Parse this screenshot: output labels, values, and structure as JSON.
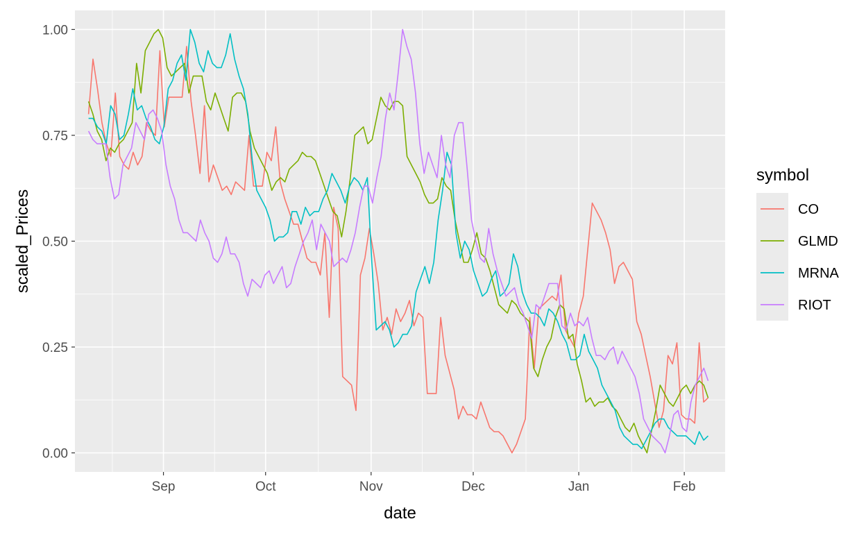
{
  "chart_data": {
    "type": "line",
    "xlabel": "date",
    "ylabel": "scaled_Prices",
    "legend_title": "symbol",
    "legend_position": "right",
    "grid": true,
    "x_start": "2021-08-10",
    "x_end": "2022-02-08",
    "xlim": [
      "2021-08-06",
      "2022-02-13"
    ],
    "ylim": [
      -0.045,
      1.045
    ],
    "x_ticks": [
      {
        "label": "Sep",
        "date": "2021-09-01"
      },
      {
        "label": "Oct",
        "date": "2021-10-01"
      },
      {
        "label": "Nov",
        "date": "2021-11-01"
      },
      {
        "label": "Dec",
        "date": "2021-12-01"
      },
      {
        "label": "Jan",
        "date": "2022-01-01"
      },
      {
        "label": "Feb",
        "date": "2022-02-01"
      }
    ],
    "y_ticks": [
      0,
      0.25,
      0.5,
      0.75,
      1.0
    ],
    "y_tick_labels": [
      "0.00",
      "0.25",
      "0.50",
      "0.75",
      "1.00"
    ],
    "series": [
      {
        "name": "CO",
        "color": "#F8766D",
        "values": [
          0.8,
          0.93,
          0.86,
          0.78,
          0.73,
          0.7,
          0.85,
          0.7,
          0.68,
          0.67,
          0.71,
          0.68,
          0.7,
          0.78,
          0.76,
          0.75,
          0.95,
          0.77,
          0.84,
          0.84,
          0.84,
          0.84,
          0.96,
          0.83,
          0.75,
          0.66,
          0.82,
          0.64,
          0.68,
          0.65,
          0.62,
          0.63,
          0.61,
          0.64,
          0.63,
          0.62,
          0.75,
          0.63,
          0.63,
          0.63,
          0.71,
          0.69,
          0.77,
          0.64,
          0.6,
          0.57,
          0.54,
          0.54,
          0.5,
          0.46,
          0.45,
          0.45,
          0.42,
          0.52,
          0.32,
          0.58,
          0.53,
          0.18,
          0.17,
          0.16,
          0.1,
          0.42,
          0.46,
          0.53,
          0.47,
          0.4,
          0.29,
          0.32,
          0.28,
          0.34,
          0.31,
          0.33,
          0.36,
          0.3,
          0.33,
          0.32,
          0.14,
          0.14,
          0.14,
          0.32,
          0.23,
          0.19,
          0.15,
          0.08,
          0.11,
          0.09,
          0.09,
          0.08,
          0.12,
          0.09,
          0.06,
          0.05,
          0.05,
          0.04,
          0.02,
          0.0,
          0.02,
          0.05,
          0.08,
          0.32,
          0.2,
          0.34,
          0.35,
          0.36,
          0.37,
          0.36,
          0.42,
          0.29,
          0.27,
          0.25,
          0.33,
          0.37,
          0.48,
          0.59,
          0.57,
          0.55,
          0.52,
          0.48,
          0.4,
          0.44,
          0.45,
          0.43,
          0.41,
          0.31,
          0.28,
          0.23,
          0.18,
          0.12,
          0.06,
          0.1,
          0.23,
          0.21,
          0.26,
          0.09,
          0.08,
          0.08,
          0.07,
          0.26,
          0.12,
          0.13
        ]
      },
      {
        "name": "GLMD",
        "color": "#7CAE00",
        "values": [
          0.83,
          0.8,
          0.76,
          0.74,
          0.69,
          0.72,
          0.71,
          0.73,
          0.74,
          0.76,
          0.78,
          0.92,
          0.85,
          0.95,
          0.97,
          0.99,
          1.0,
          0.98,
          0.91,
          0.89,
          0.9,
          0.91,
          0.92,
          0.85,
          0.89,
          0.89,
          0.89,
          0.83,
          0.81,
          0.85,
          0.82,
          0.79,
          0.76,
          0.84,
          0.85,
          0.85,
          0.83,
          0.76,
          0.72,
          0.7,
          0.68,
          0.66,
          0.62,
          0.64,
          0.65,
          0.64,
          0.67,
          0.68,
          0.69,
          0.71,
          0.7,
          0.7,
          0.69,
          0.66,
          0.63,
          0.6,
          0.57,
          0.56,
          0.51,
          0.57,
          0.65,
          0.75,
          0.76,
          0.77,
          0.73,
          0.74,
          0.79,
          0.84,
          0.82,
          0.81,
          0.83,
          0.83,
          0.82,
          0.7,
          0.68,
          0.66,
          0.64,
          0.61,
          0.59,
          0.59,
          0.6,
          0.65,
          0.63,
          0.62,
          0.55,
          0.5,
          0.45,
          0.45,
          0.48,
          0.52,
          0.47,
          0.46,
          0.43,
          0.39,
          0.35,
          0.34,
          0.33,
          0.36,
          0.35,
          0.33,
          0.32,
          0.31,
          0.2,
          0.18,
          0.22,
          0.25,
          0.27,
          0.32,
          0.35,
          0.34,
          0.27,
          0.28,
          0.21,
          0.17,
          0.12,
          0.13,
          0.11,
          0.12,
          0.12,
          0.13,
          0.11,
          0.1,
          0.08,
          0.06,
          0.05,
          0.07,
          0.04,
          0.02,
          0.0,
          0.05,
          0.1,
          0.16,
          0.14,
          0.12,
          0.11,
          0.13,
          0.15,
          0.16,
          0.14,
          0.16,
          0.17,
          0.16,
          0.13
        ]
      },
      {
        "name": "MRNA",
        "color": "#00BFC4",
        "values": [
          0.79,
          0.79,
          0.77,
          0.76,
          0.73,
          0.82,
          0.8,
          0.74,
          0.75,
          0.8,
          0.86,
          0.81,
          0.82,
          0.79,
          0.77,
          0.74,
          0.73,
          0.77,
          0.86,
          0.88,
          0.92,
          0.94,
          0.88,
          1.0,
          0.97,
          0.92,
          0.9,
          0.95,
          0.92,
          0.91,
          0.91,
          0.94,
          0.99,
          0.93,
          0.89,
          0.86,
          0.8,
          0.69,
          0.62,
          0.6,
          0.58,
          0.55,
          0.5,
          0.51,
          0.51,
          0.52,
          0.57,
          0.57,
          0.54,
          0.58,
          0.56,
          0.57,
          0.57,
          0.6,
          0.62,
          0.66,
          0.64,
          0.62,
          0.59,
          0.63,
          0.65,
          0.64,
          0.62,
          0.65,
          0.45,
          0.29,
          0.3,
          0.31,
          0.29,
          0.25,
          0.26,
          0.28,
          0.28,
          0.3,
          0.38,
          0.41,
          0.44,
          0.4,
          0.45,
          0.55,
          0.62,
          0.71,
          0.68,
          0.52,
          0.46,
          0.5,
          0.48,
          0.43,
          0.4,
          0.37,
          0.38,
          0.41,
          0.43,
          0.37,
          0.38,
          0.4,
          0.47,
          0.44,
          0.38,
          0.35,
          0.33,
          0.33,
          0.32,
          0.3,
          0.34,
          0.33,
          0.31,
          0.28,
          0.26,
          0.22,
          0.22,
          0.23,
          0.28,
          0.24,
          0.22,
          0.2,
          0.16,
          0.14,
          0.12,
          0.1,
          0.06,
          0.04,
          0.03,
          0.02,
          0.02,
          0.01,
          0.03,
          0.05,
          0.07,
          0.08,
          0.08,
          0.06,
          0.05,
          0.04,
          0.04,
          0.04,
          0.03,
          0.02,
          0.05,
          0.03,
          0.04
        ]
      },
      {
        "name": "RIOT",
        "color": "#C77CFF",
        "values": [
          0.76,
          0.74,
          0.73,
          0.73,
          0.73,
          0.65,
          0.6,
          0.61,
          0.68,
          0.7,
          0.72,
          0.78,
          0.76,
          0.74,
          0.8,
          0.81,
          0.79,
          0.76,
          0.68,
          0.63,
          0.6,
          0.55,
          0.52,
          0.52,
          0.51,
          0.5,
          0.55,
          0.52,
          0.5,
          0.46,
          0.45,
          0.47,
          0.51,
          0.47,
          0.47,
          0.45,
          0.4,
          0.37,
          0.41,
          0.4,
          0.39,
          0.42,
          0.43,
          0.4,
          0.42,
          0.44,
          0.39,
          0.4,
          0.44,
          0.47,
          0.5,
          0.52,
          0.55,
          0.48,
          0.54,
          0.52,
          0.5,
          0.44,
          0.45,
          0.46,
          0.45,
          0.48,
          0.52,
          0.58,
          0.63,
          0.63,
          0.59,
          0.65,
          0.7,
          0.79,
          0.85,
          0.81,
          0.9,
          1.0,
          0.96,
          0.93,
          0.85,
          0.73,
          0.66,
          0.71,
          0.68,
          0.65,
          0.75,
          0.68,
          0.65,
          0.75,
          0.78,
          0.78,
          0.67,
          0.55,
          0.5,
          0.46,
          0.45,
          0.53,
          0.47,
          0.43,
          0.4,
          0.37,
          0.38,
          0.39,
          0.35,
          0.33,
          0.3,
          0.27,
          0.35,
          0.34,
          0.37,
          0.4,
          0.4,
          0.4,
          0.3,
          0.29,
          0.33,
          0.3,
          0.31,
          0.3,
          0.32,
          0.27,
          0.23,
          0.23,
          0.22,
          0.24,
          0.25,
          0.21,
          0.24,
          0.22,
          0.2,
          0.18,
          0.14,
          0.08,
          0.06,
          0.04,
          0.03,
          0.02,
          0.0,
          0.04,
          0.09,
          0.1,
          0.06,
          0.05,
          0.12,
          0.16,
          0.18,
          0.2,
          0.17
        ]
      }
    ]
  }
}
